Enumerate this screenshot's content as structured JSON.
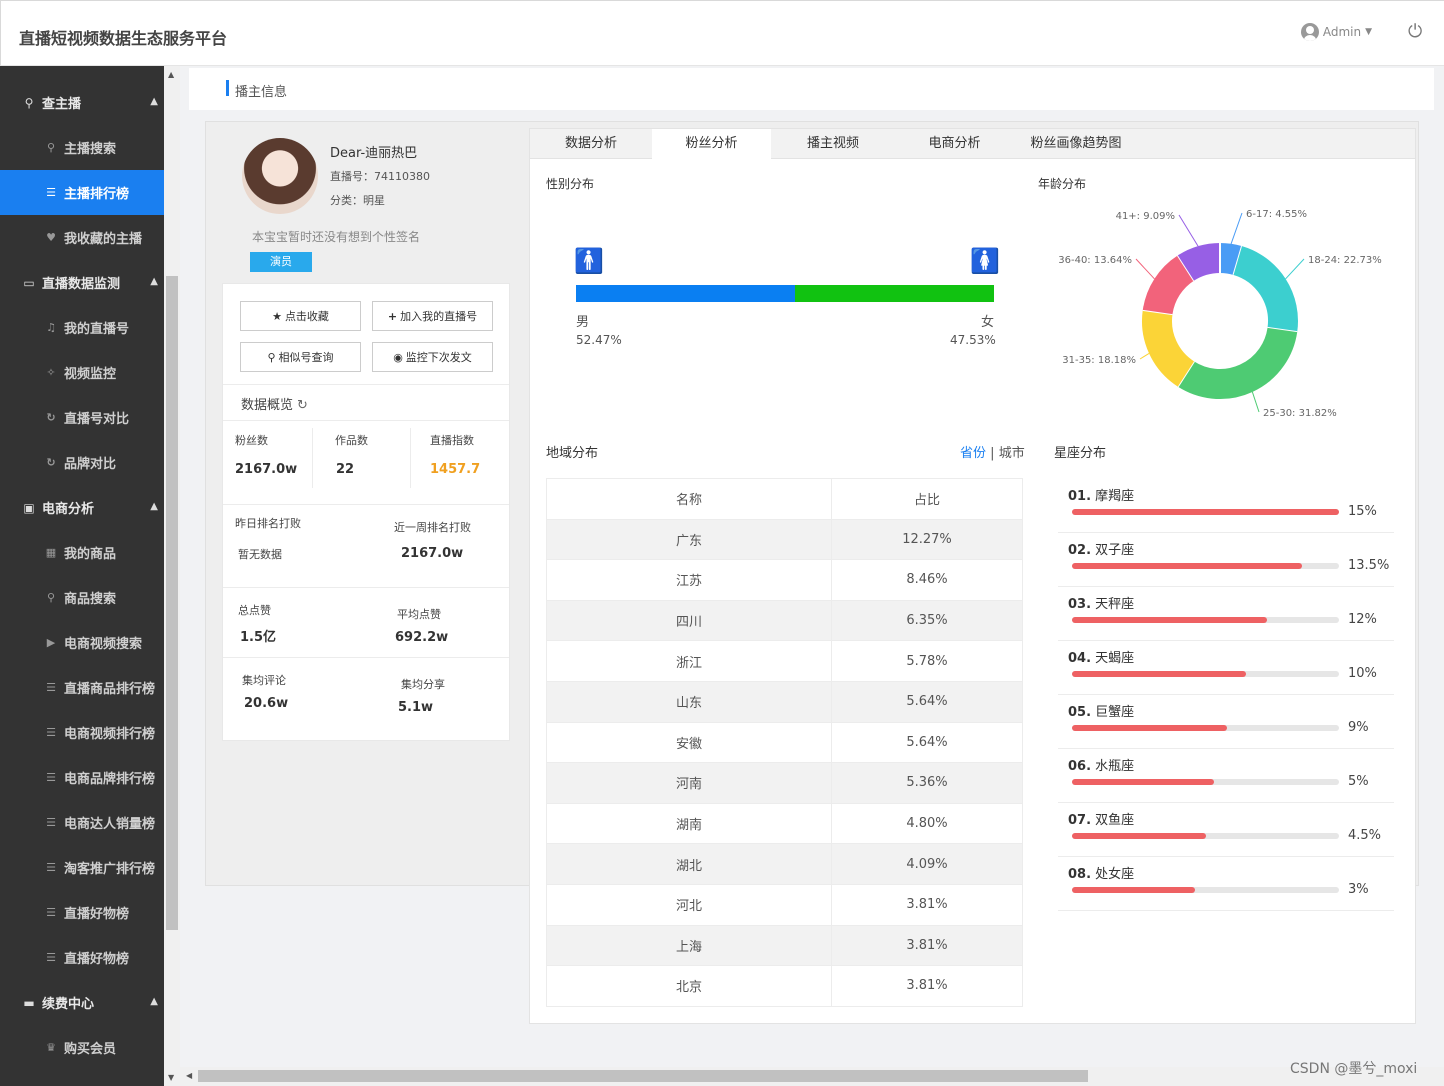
{
  "header": {
    "title": "直播短视频数据生态服务平台",
    "user": "Admin"
  },
  "sidebar": {
    "groups": [
      {
        "label": "查主播",
        "icon": "search-icon",
        "items": [
          {
            "label": "主播搜索",
            "icon": "zoom-icon"
          },
          {
            "label": "主播排行榜",
            "icon": "list-icon",
            "active": true
          },
          {
            "label": "我收藏的主播",
            "icon": "heart-icon"
          }
        ]
      },
      {
        "label": "直播数据监测",
        "icon": "laptop-icon",
        "items": [
          {
            "label": "我的直播号",
            "icon": "mic-icon"
          },
          {
            "label": "视频监控",
            "icon": "target-icon"
          },
          {
            "label": "直播号对比",
            "icon": "refresh-icon"
          },
          {
            "label": "品牌对比",
            "icon": "refresh-icon"
          }
        ]
      },
      {
        "label": "电商分析",
        "icon": "bag-icon",
        "items": [
          {
            "label": "我的商品",
            "icon": "grid-icon"
          },
          {
            "label": "商品搜索",
            "icon": "zoom-icon"
          },
          {
            "label": "电商视频搜索",
            "icon": "play-icon"
          },
          {
            "label": "直播商品排行榜",
            "icon": "list-icon"
          },
          {
            "label": "电商视频排行榜",
            "icon": "list-icon"
          },
          {
            "label": "电商品牌排行榜",
            "icon": "list-icon"
          },
          {
            "label": "电商达人销量榜",
            "icon": "list-icon"
          },
          {
            "label": "淘客推广排行榜",
            "icon": "list-icon"
          },
          {
            "label": "直播好物榜",
            "icon": "list-icon"
          },
          {
            "label": "直播好物榜",
            "icon": "list-icon"
          }
        ]
      },
      {
        "label": "续费中心",
        "icon": "card-icon",
        "items": [
          {
            "label": "购买会员",
            "icon": "crown-icon"
          }
        ]
      }
    ]
  },
  "page_title": "播主信息",
  "profile": {
    "name": "Dear-迪丽热巴",
    "id_text": "直播号：74110380",
    "category_text": "分类：明星",
    "signature": "本宝宝暂时还没有想到个性签名",
    "tag": "演员"
  },
  "actions": {
    "favorite": "点击收藏",
    "add_live": "加入我的直播号",
    "similar": "相似号查询",
    "monitor": "监控下次发文"
  },
  "overview": {
    "title": "数据概览",
    "fans_label": "粉丝数",
    "fans_value": "2167.0w",
    "works_label": "作品数",
    "works_value": "22",
    "index_label": "直播指数",
    "index_value": "1457.7",
    "rank_yday_label": "昨日排名打败",
    "rank_yday_value": "暂无数据",
    "rank_week_label": "近一周排名打败",
    "rank_week_value": "2167.0w",
    "likes_label": "总点赞",
    "likes_value": "1.5亿",
    "avg_likes_label": "平均点赞",
    "avg_likes_value": "692.2w",
    "avg_comment_label": "集均评论",
    "avg_comment_value": "20.6w",
    "avg_share_label": "集均分享",
    "avg_share_value": "5.1w"
  },
  "tabs": [
    "数据分析",
    "粉丝分析",
    "播主视频",
    "电商分析",
    "粉丝画像趋势图"
  ],
  "active_tab": 1,
  "gender": {
    "title": "性别分布",
    "male_label": "男",
    "male_pct": "52.47%",
    "male_value": 52.47,
    "female_label": "女",
    "female_pct": "47.53%",
    "male_color": "#0a7ff2",
    "female_color": "#11c211"
  },
  "age": {
    "title": "年龄分布",
    "slices": [
      {
        "label": "6-17: 4.55%",
        "value": 4.55,
        "color": "#4a9cf5"
      },
      {
        "label": "18-24: 22.73%",
        "value": 22.73,
        "color": "#3ccfcf"
      },
      {
        "label": "25-30: 31.82%",
        "value": 31.82,
        "color": "#4ecb73"
      },
      {
        "label": "31-35: 18.18%",
        "value": 18.18,
        "color": "#fbd437"
      },
      {
        "label": "36-40: 13.64%",
        "value": 13.64,
        "color": "#f2637b"
      },
      {
        "label": "41+: 9.09%",
        "value": 9.09,
        "color": "#975fe5"
      }
    ]
  },
  "region": {
    "title": "地域分布",
    "switch_province": "省份",
    "switch_sep": "|",
    "switch_city": "城市",
    "headers": [
      "名称",
      "占比"
    ],
    "rows": [
      [
        "广东",
        "12.27%"
      ],
      [
        "江苏",
        "8.46%"
      ],
      [
        "四川",
        "6.35%"
      ],
      [
        "浙江",
        "5.78%"
      ],
      [
        "山东",
        "5.64%"
      ],
      [
        "安徽",
        "5.64%"
      ],
      [
        "河南",
        "5.36%"
      ],
      [
        "湖南",
        "4.80%"
      ],
      [
        "湖北",
        "4.09%"
      ],
      [
        "河北",
        "3.81%"
      ],
      [
        "上海",
        "3.81%"
      ],
      [
        "北京",
        "3.81%"
      ]
    ]
  },
  "zodiac": {
    "title": "星座分布",
    "items": [
      {
        "rank": "01.",
        "name": "摩羯座",
        "pct": "15%",
        "fill": 1.0
      },
      {
        "rank": "02.",
        "name": "双子座",
        "pct": "13.5%",
        "fill": 0.86
      },
      {
        "rank": "03.",
        "name": "天秤座",
        "pct": "12%",
        "fill": 0.73
      },
      {
        "rank": "04.",
        "name": "天蝎座",
        "pct": "10%",
        "fill": 0.65
      },
      {
        "rank": "05.",
        "name": "巨蟹座",
        "pct": "9%",
        "fill": 0.58
      },
      {
        "rank": "06.",
        "name": "水瓶座",
        "pct": "5%",
        "fill": 0.53
      },
      {
        "rank": "07.",
        "name": "双鱼座",
        "pct": "4.5%",
        "fill": 0.5
      },
      {
        "rank": "08.",
        "name": "处女座",
        "pct": "3%",
        "fill": 0.46
      }
    ]
  },
  "watermark": "CSDN @墨兮_moxi"
}
